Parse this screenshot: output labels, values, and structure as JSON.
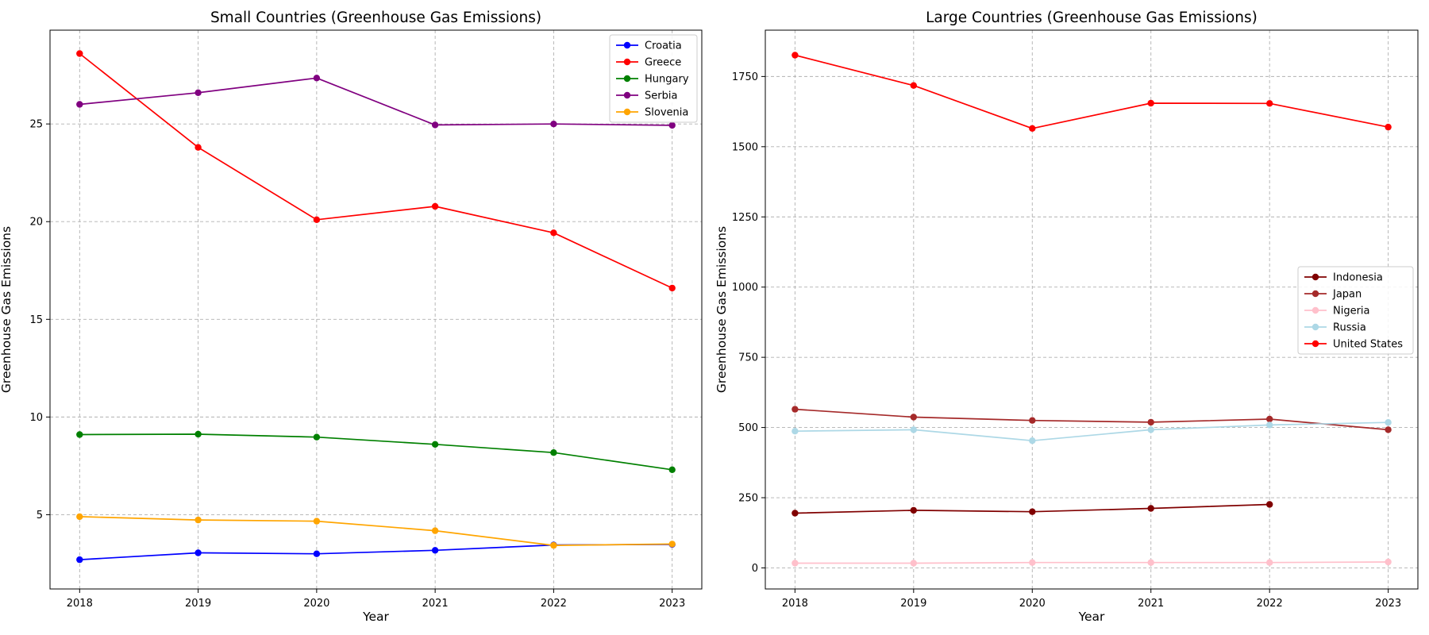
{
  "chart_data": [
    {
      "type": "line",
      "title": "Small Countries (Greenhouse Gas Emissions)",
      "xlabel": "Year",
      "ylabel": "Greenhouse Gas Emissions",
      "x": [
        2018,
        2019,
        2020,
        2021,
        2022,
        2023
      ],
      "xlim": [
        2017.75,
        2023.25
      ],
      "ylim": [
        1.2,
        29.8
      ],
      "yticks": [
        5,
        10,
        15,
        20,
        25
      ],
      "grid": true,
      "legend_position": "top-right",
      "series": [
        {
          "name": "Croatia",
          "color": "#0000ff",
          "values": [
            2.7,
            3.05,
            3.0,
            3.18,
            3.45,
            3.48
          ]
        },
        {
          "name": "Greece",
          "color": "#ff0000",
          "values": [
            28.6,
            23.8,
            20.1,
            20.78,
            19.43,
            16.6
          ]
        },
        {
          "name": "Hungary",
          "color": "#008000",
          "values": [
            9.1,
            9.12,
            8.97,
            8.6,
            8.18,
            7.3
          ]
        },
        {
          "name": "Serbia",
          "color": "#800080",
          "values": [
            26.0,
            26.6,
            27.35,
            24.95,
            25.0,
            24.93
          ]
        },
        {
          "name": "Slovenia",
          "color": "#ffa500",
          "values": [
            4.9,
            4.73,
            4.67,
            4.18,
            3.43,
            3.5
          ]
        }
      ]
    },
    {
      "type": "line",
      "title": "Large Countries (Greenhouse Gas Emissions)",
      "xlabel": "Year",
      "ylabel": "Greenhouse Gas Emissions",
      "x": [
        2018,
        2019,
        2020,
        2021,
        2022,
        2023
      ],
      "xlim": [
        2017.75,
        2023.25
      ],
      "ylim": [
        -75,
        1915
      ],
      "yticks": [
        0,
        250,
        500,
        750,
        1000,
        1250,
        1500,
        1750
      ],
      "grid": true,
      "legend_position": "center-right",
      "series": [
        {
          "name": "Indonesia",
          "color": "#800000",
          "values": [
            195,
            205,
            200,
            212,
            226,
            null
          ]
        },
        {
          "name": "Japan",
          "color": "#a52a2a",
          "values": [
            565,
            537,
            525,
            519,
            530,
            492
          ]
        },
        {
          "name": "Nigeria",
          "color": "#ffc0cb",
          "values": [
            17,
            17,
            19,
            19,
            19,
            21
          ]
        },
        {
          "name": "Russia",
          "color": "#add8e6",
          "values": [
            487,
            492,
            453,
            492,
            509,
            518
          ]
        },
        {
          "name": "United States",
          "color": "#ff0000",
          "values": [
            1826,
            1718,
            1565,
            1655,
            1654,
            1570
          ]
        }
      ]
    }
  ]
}
